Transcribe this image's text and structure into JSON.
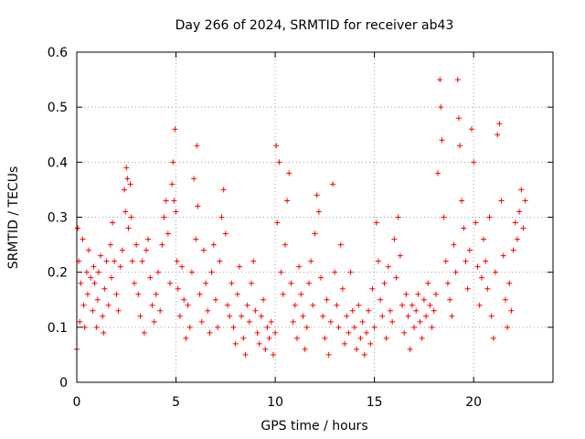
{
  "chart_data": {
    "type": "scatter",
    "title": "Day 266 of 2024, SRMTID for receiver ab43",
    "xlabel": "GPS time / hours",
    "ylabel": "SRMTID / TECUs",
    "xlim": [
      0,
      24
    ],
    "ylim": [
      0,
      0.6
    ],
    "xticks": [
      "0",
      "5",
      "10",
      "15",
      "20"
    ],
    "xtick_values": [
      0,
      5,
      10,
      15,
      20
    ],
    "yticks": [
      "0",
      "0.1",
      "0.2",
      "0.3",
      "0.4",
      "0.5",
      "0.6"
    ],
    "ytick_values": [
      0,
      0.1,
      0.2,
      0.3,
      0.4,
      0.5,
      0.6
    ],
    "grid": true,
    "marker": "+",
    "series": [
      {
        "name": "SRMTID",
        "color": "#ff0000",
        "points": [
          [
            0.0,
            0.06
          ],
          [
            0.05,
            0.28
          ],
          [
            0.1,
            0.22
          ],
          [
            0.15,
            0.11
          ],
          [
            0.2,
            0.18
          ],
          [
            0.3,
            0.26
          ],
          [
            0.35,
            0.14
          ],
          [
            0.4,
            0.1
          ],
          [
            0.5,
            0.2
          ],
          [
            0.55,
            0.16
          ],
          [
            0.6,
            0.24
          ],
          [
            0.7,
            0.19
          ],
          [
            0.8,
            0.13
          ],
          [
            0.85,
            0.21
          ],
          [
            0.9,
            0.18
          ],
          [
            1.0,
            0.1
          ],
          [
            1.05,
            0.15
          ],
          [
            1.1,
            0.2
          ],
          [
            1.2,
            0.23
          ],
          [
            1.3,
            0.12
          ],
          [
            1.35,
            0.09
          ],
          [
            1.4,
            0.17
          ],
          [
            1.5,
            0.22
          ],
          [
            1.6,
            0.14
          ],
          [
            1.7,
            0.25
          ],
          [
            1.75,
            0.19
          ],
          [
            1.8,
            0.29
          ],
          [
            1.9,
            0.22
          ],
          [
            2.0,
            0.16
          ],
          [
            2.1,
            0.13
          ],
          [
            2.2,
            0.21
          ],
          [
            2.3,
            0.24
          ],
          [
            2.4,
            0.35
          ],
          [
            2.45,
            0.31
          ],
          [
            2.5,
            0.39
          ],
          [
            2.55,
            0.37
          ],
          [
            2.6,
            0.28
          ],
          [
            2.7,
            0.36
          ],
          [
            2.75,
            0.3
          ],
          [
            2.8,
            0.22
          ],
          [
            2.9,
            0.18
          ],
          [
            3.0,
            0.25
          ],
          [
            3.1,
            0.16
          ],
          [
            3.2,
            0.12
          ],
          [
            3.3,
            0.22
          ],
          [
            3.4,
            0.09
          ],
          [
            3.5,
            0.24
          ],
          [
            3.6,
            0.26
          ],
          [
            3.7,
            0.19
          ],
          [
            3.8,
            0.14
          ],
          [
            3.9,
            0.11
          ],
          [
            4.0,
            0.16
          ],
          [
            4.1,
            0.2
          ],
          [
            4.2,
            0.13
          ],
          [
            4.3,
            0.25
          ],
          [
            4.4,
            0.3
          ],
          [
            4.5,
            0.33
          ],
          [
            4.6,
            0.27
          ],
          [
            4.7,
            0.18
          ],
          [
            4.8,
            0.36
          ],
          [
            4.85,
            0.4
          ],
          [
            4.9,
            0.33
          ],
          [
            4.95,
            0.46
          ],
          [
            5.0,
            0.31
          ],
          [
            5.05,
            0.22
          ],
          [
            5.1,
            0.17
          ],
          [
            5.2,
            0.12
          ],
          [
            5.3,
            0.21
          ],
          [
            5.4,
            0.15
          ],
          [
            5.5,
            0.08
          ],
          [
            5.6,
            0.14
          ],
          [
            5.7,
            0.1
          ],
          [
            5.8,
            0.2
          ],
          [
            5.9,
            0.37
          ],
          [
            6.0,
            0.26
          ],
          [
            6.05,
            0.43
          ],
          [
            6.1,
            0.32
          ],
          [
            6.2,
            0.16
          ],
          [
            6.3,
            0.11
          ],
          [
            6.4,
            0.24
          ],
          [
            6.5,
            0.18
          ],
          [
            6.6,
            0.13
          ],
          [
            6.7,
            0.09
          ],
          [
            6.8,
            0.2
          ],
          [
            6.9,
            0.25
          ],
          [
            7.0,
            0.15
          ],
          [
            7.1,
            0.1
          ],
          [
            7.2,
            0.22
          ],
          [
            7.3,
            0.3
          ],
          [
            7.4,
            0.35
          ],
          [
            7.5,
            0.27
          ],
          [
            7.6,
            0.14
          ],
          [
            7.7,
            0.12
          ],
          [
            7.8,
            0.18
          ],
          [
            7.9,
            0.1
          ],
          [
            8.0,
            0.07
          ],
          [
            8.1,
            0.16
          ],
          [
            8.2,
            0.21
          ],
          [
            8.3,
            0.12
          ],
          [
            8.4,
            0.08
          ],
          [
            8.5,
            0.05
          ],
          [
            8.6,
            0.14
          ],
          [
            8.7,
            0.11
          ],
          [
            8.8,
            0.18
          ],
          [
            8.9,
            0.22
          ],
          [
            9.0,
            0.13
          ],
          [
            9.1,
            0.09
          ],
          [
            9.2,
            0.07
          ],
          [
            9.3,
            0.12
          ],
          [
            9.4,
            0.15
          ],
          [
            9.5,
            0.06
          ],
          [
            9.6,
            0.1
          ],
          [
            9.7,
            0.08
          ],
          [
            9.8,
            0.11
          ],
          [
            9.9,
            0.05
          ],
          [
            10.0,
            0.09
          ],
          [
            10.05,
            0.43
          ],
          [
            10.1,
            0.29
          ],
          [
            10.2,
            0.4
          ],
          [
            10.3,
            0.2
          ],
          [
            10.4,
            0.16
          ],
          [
            10.5,
            0.25
          ],
          [
            10.6,
            0.33
          ],
          [
            10.7,
            0.38
          ],
          [
            10.8,
            0.18
          ],
          [
            10.9,
            0.11
          ],
          [
            11.0,
            0.14
          ],
          [
            11.1,
            0.08
          ],
          [
            11.2,
            0.21
          ],
          [
            11.3,
            0.16
          ],
          [
            11.4,
            0.12
          ],
          [
            11.5,
            0.06
          ],
          [
            11.6,
            0.1
          ],
          [
            11.7,
            0.18
          ],
          [
            11.8,
            0.22
          ],
          [
            11.9,
            0.14
          ],
          [
            12.0,
            0.27
          ],
          [
            12.1,
            0.34
          ],
          [
            12.2,
            0.31
          ],
          [
            12.3,
            0.19
          ],
          [
            12.4,
            0.12
          ],
          [
            12.5,
            0.08
          ],
          [
            12.6,
            0.15
          ],
          [
            12.7,
            0.05
          ],
          [
            12.8,
            0.11
          ],
          [
            12.9,
            0.36
          ],
          [
            13.0,
            0.2
          ],
          [
            13.1,
            0.14
          ],
          [
            13.2,
            0.1
          ],
          [
            13.3,
            0.25
          ],
          [
            13.4,
            0.17
          ],
          [
            13.5,
            0.07
          ],
          [
            13.6,
            0.12
          ],
          [
            13.7,
            0.09
          ],
          [
            13.8,
            0.2
          ],
          [
            13.9,
            0.13
          ],
          [
            14.0,
            0.1
          ],
          [
            14.1,
            0.06
          ],
          [
            14.2,
            0.14
          ],
          [
            14.3,
            0.08
          ],
          [
            14.4,
            0.11
          ],
          [
            14.5,
            0.05
          ],
          [
            14.6,
            0.09
          ],
          [
            14.7,
            0.13
          ],
          [
            14.8,
            0.07
          ],
          [
            14.9,
            0.17
          ],
          [
            15.0,
            0.1
          ],
          [
            15.1,
            0.29
          ],
          [
            15.2,
            0.22
          ],
          [
            15.3,
            0.15
          ],
          [
            15.4,
            0.12
          ],
          [
            15.5,
            0.18
          ],
          [
            15.6,
            0.08
          ],
          [
            15.7,
            0.21
          ],
          [
            15.8,
            0.13
          ],
          [
            15.9,
            0.11
          ],
          [
            16.0,
            0.26
          ],
          [
            16.1,
            0.19
          ],
          [
            16.2,
            0.3
          ],
          [
            16.3,
            0.23
          ],
          [
            16.4,
            0.14
          ],
          [
            16.5,
            0.09
          ],
          [
            16.6,
            0.16
          ],
          [
            16.7,
            0.12
          ],
          [
            16.8,
            0.06
          ],
          [
            16.9,
            0.14
          ],
          [
            17.0,
            0.1
          ],
          [
            17.1,
            0.13
          ],
          [
            17.2,
            0.16
          ],
          [
            17.3,
            0.11
          ],
          [
            17.4,
            0.08
          ],
          [
            17.5,
            0.15
          ],
          [
            17.6,
            0.12
          ],
          [
            17.7,
            0.18
          ],
          [
            17.8,
            0.14
          ],
          [
            17.9,
            0.1
          ],
          [
            18.0,
            0.13
          ],
          [
            18.1,
            0.16
          ],
          [
            18.2,
            0.38
          ],
          [
            18.3,
            0.55
          ],
          [
            18.35,
            0.5
          ],
          [
            18.4,
            0.44
          ],
          [
            18.5,
            0.3
          ],
          [
            18.6,
            0.22
          ],
          [
            18.7,
            0.18
          ],
          [
            18.8,
            0.15
          ],
          [
            18.9,
            0.12
          ],
          [
            19.0,
            0.25
          ],
          [
            19.1,
            0.2
          ],
          [
            19.2,
            0.55
          ],
          [
            19.25,
            0.48
          ],
          [
            19.3,
            0.43
          ],
          [
            19.4,
            0.33
          ],
          [
            19.5,
            0.28
          ],
          [
            19.6,
            0.22
          ],
          [
            19.7,
            0.17
          ],
          [
            19.8,
            0.24
          ],
          [
            19.9,
            0.46
          ],
          [
            20.0,
            0.4
          ],
          [
            20.1,
            0.29
          ],
          [
            20.2,
            0.21
          ],
          [
            20.3,
            0.14
          ],
          [
            20.4,
            0.19
          ],
          [
            20.5,
            0.26
          ],
          [
            20.6,
            0.22
          ],
          [
            20.7,
            0.17
          ],
          [
            20.8,
            0.3
          ],
          [
            20.9,
            0.12
          ],
          [
            21.0,
            0.08
          ],
          [
            21.1,
            0.2
          ],
          [
            21.2,
            0.45
          ],
          [
            21.3,
            0.47
          ],
          [
            21.4,
            0.33
          ],
          [
            21.5,
            0.23
          ],
          [
            21.6,
            0.15
          ],
          [
            21.7,
            0.1
          ],
          [
            21.8,
            0.18
          ],
          [
            21.9,
            0.13
          ],
          [
            22.0,
            0.24
          ],
          [
            22.1,
            0.29
          ],
          [
            22.2,
            0.26
          ],
          [
            22.3,
            0.31
          ],
          [
            22.4,
            0.35
          ],
          [
            22.5,
            0.28
          ],
          [
            22.6,
            0.33
          ]
        ]
      }
    ]
  }
}
